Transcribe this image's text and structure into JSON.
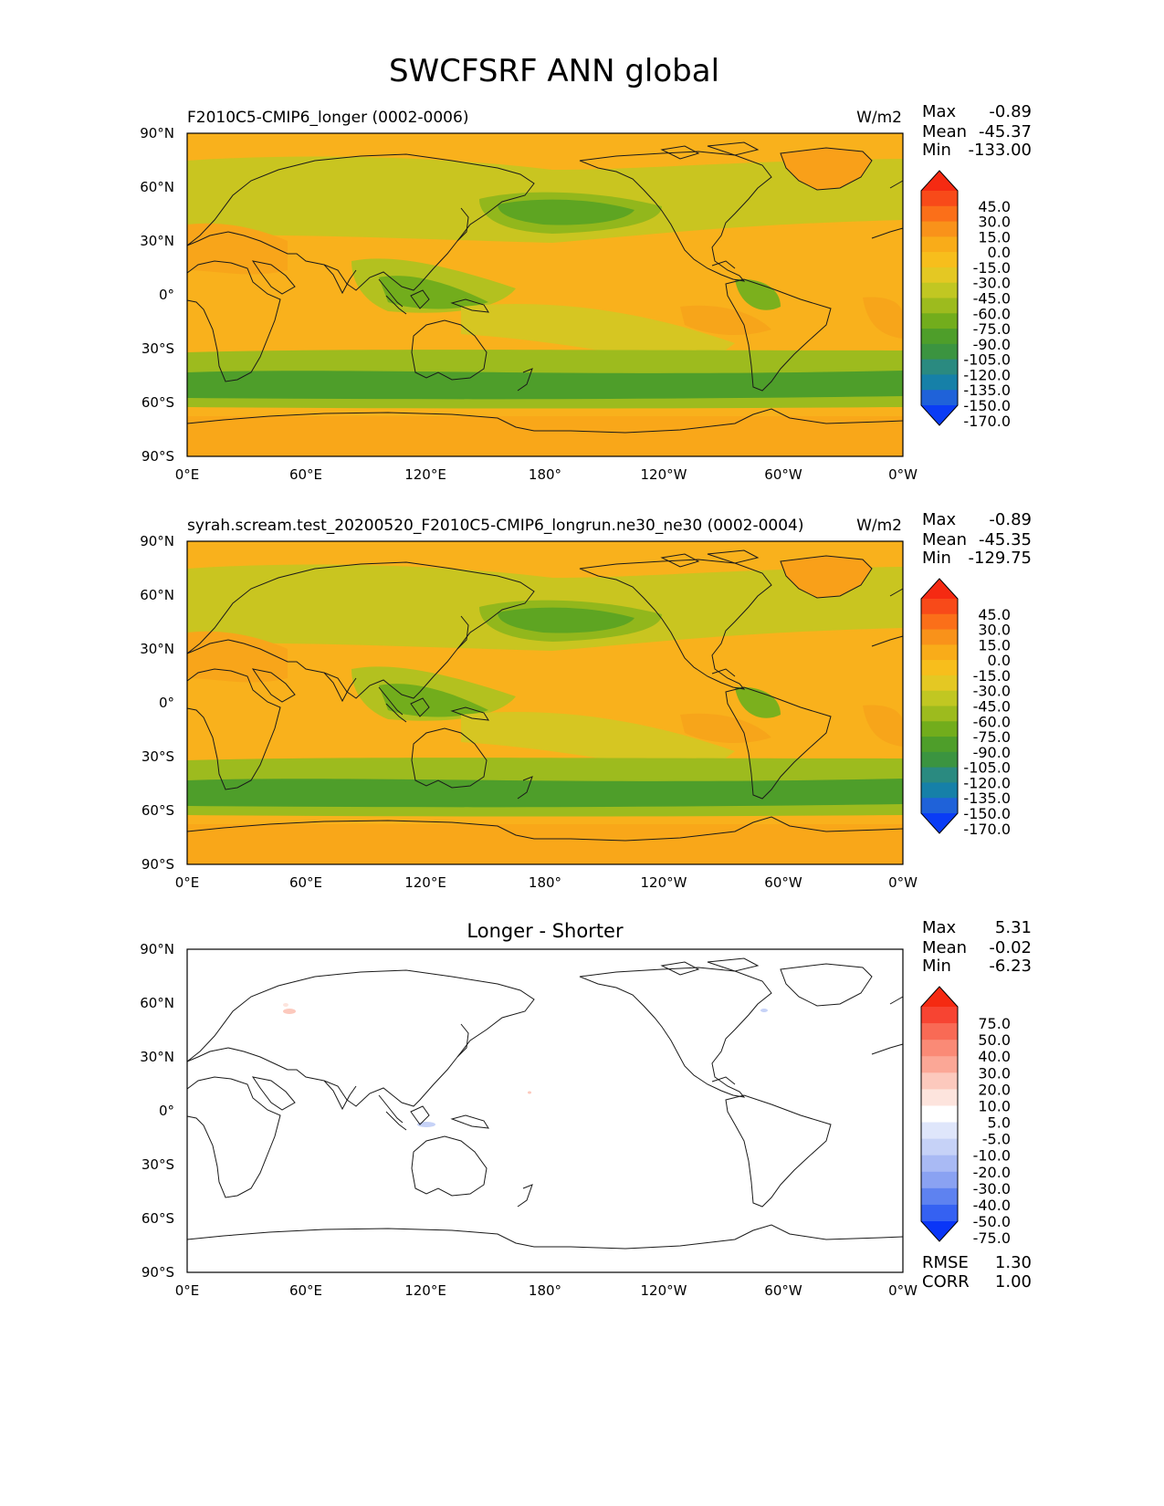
{
  "figure": {
    "title": "SWCFSRF ANN global"
  },
  "colors": {
    "ocean_bg": "#f9b11c",
    "coast": "#1a1a1a",
    "field_scale": [
      "#0a3cf5",
      "#1f62d9",
      "#1680a8",
      "#2a8a80",
      "#3b9440",
      "#4e9e2a",
      "#72ad1c",
      "#9dbb1e",
      "#c1c722",
      "#e4c823",
      "#f7be1c",
      "#f9ac19",
      "#f9921a",
      "#fb6f19",
      "#f84a19",
      "#f52a12"
    ],
    "diff_scale": [
      "#0a36f7",
      "#3561f2",
      "#5e82f0",
      "#8aa2f2",
      "#a9baf4",
      "#c6d2f7",
      "#dfe6fb",
      "#ffffff",
      "#fde4dd",
      "#fcc9bd",
      "#fba796",
      "#fa8a76",
      "#f96a55",
      "#f74432",
      "#f52a12"
    ]
  },
  "chart_data": [
    {
      "type": "heatmap",
      "title": "F2010C5-CMIP6_longer (0002-0006)",
      "units": "W/m2",
      "x_ticks": [
        "0°E",
        "60°E",
        "120°E",
        "180°",
        "120°W",
        "60°W",
        "0°W"
      ],
      "y_ticks": [
        "90°N",
        "60°N",
        "30°N",
        "0°",
        "30°S",
        "60°S",
        "90°S"
      ],
      "xlim": [
        0,
        360
      ],
      "ylim": [
        -90,
        90
      ],
      "stats": {
        "max_label": "Max",
        "max": "-0.89",
        "mean_label": "Mean",
        "mean": "-45.37",
        "min_label": "Min",
        "min": "-133.00"
      },
      "colorbar_levels": [
        "45.0",
        "30.0",
        "15.0",
        "0.0",
        "-15.0",
        "-30.0",
        "-45.0",
        "-60.0",
        "-75.0",
        "-90.0",
        "-105.0",
        "-120.0",
        "-135.0",
        "-150.0",
        "-170.0"
      ],
      "cmap": "field_scale"
    },
    {
      "type": "heatmap",
      "title": "syrah.scream.test_20200520_F2010C5-CMIP6_longrun.ne30_ne30 (0002-0004)",
      "units": "W/m2",
      "x_ticks": [
        "0°E",
        "60°E",
        "120°E",
        "180°",
        "120°W",
        "60°W",
        "0°W"
      ],
      "y_ticks": [
        "90°N",
        "60°N",
        "30°N",
        "0°",
        "30°S",
        "60°S",
        "90°S"
      ],
      "xlim": [
        0,
        360
      ],
      "ylim": [
        -90,
        90
      ],
      "stats": {
        "max_label": "Max",
        "max": "-0.89",
        "mean_label": "Mean",
        "mean": "-45.35",
        "min_label": "Min",
        "min": "-129.75"
      },
      "colorbar_levels": [
        "45.0",
        "30.0",
        "15.0",
        "0.0",
        "-15.0",
        "-30.0",
        "-45.0",
        "-60.0",
        "-75.0",
        "-90.0",
        "-105.0",
        "-120.0",
        "-135.0",
        "-150.0",
        "-170.0"
      ],
      "cmap": "field_scale"
    },
    {
      "type": "heatmap",
      "title": "Longer - Shorter",
      "units": "",
      "x_ticks": [
        "0°E",
        "60°E",
        "120°E",
        "180°",
        "120°W",
        "60°W",
        "0°W"
      ],
      "y_ticks": [
        "90°N",
        "60°N",
        "30°N",
        "0°",
        "30°S",
        "60°S",
        "90°S"
      ],
      "xlim": [
        0,
        360
      ],
      "ylim": [
        -90,
        90
      ],
      "stats": {
        "max_label": "Max",
        "max": "5.31",
        "mean_label": "Mean",
        "mean": "-0.02",
        "min_label": "Min",
        "min": "-6.23"
      },
      "colorbar_levels": [
        "75.0",
        "50.0",
        "40.0",
        "30.0",
        "20.0",
        "10.0",
        "5.0",
        "-5.0",
        "-10.0",
        "-20.0",
        "-30.0",
        "-40.0",
        "-50.0",
        "-75.0"
      ],
      "cmap": "diff_scale",
      "metrics": {
        "rmse_label": "RMSE",
        "rmse": "1.30",
        "corr_label": "CORR",
        "corr": "1.00"
      }
    }
  ]
}
